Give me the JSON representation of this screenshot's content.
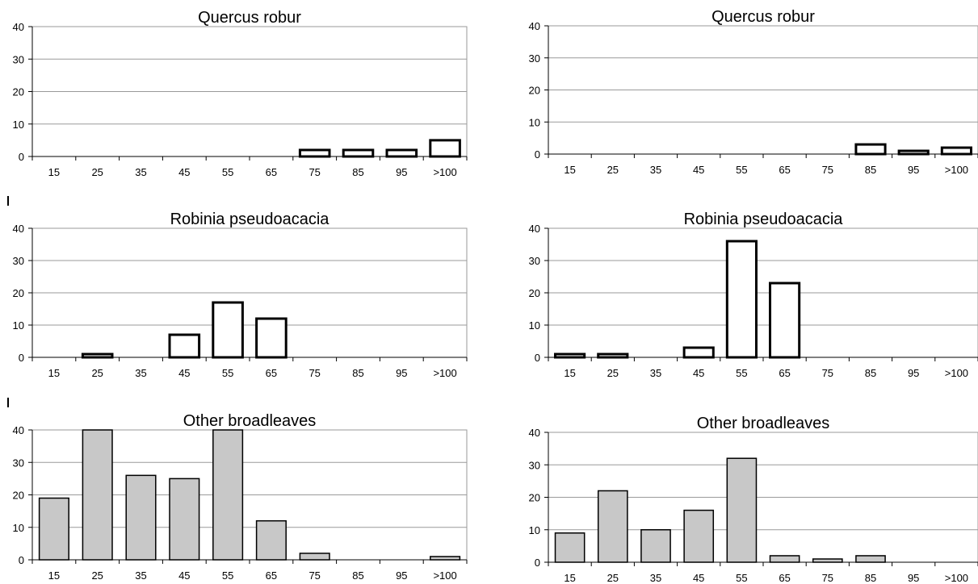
{
  "chart_data": [
    {
      "type": "bar",
      "title": "Quercus robur",
      "categories": [
        "15",
        "25",
        "35",
        "45",
        "55",
        "65",
        "75",
        "85",
        "95",
        ">100"
      ],
      "values": [
        0,
        0,
        0,
        0,
        0,
        0,
        2,
        2,
        2,
        5
      ],
      "ylim": [
        0,
        40
      ],
      "yticks": [
        0,
        10,
        20,
        30,
        40
      ],
      "bar_style": "outlined-thick",
      "bar_fill": "#ffffff",
      "grid": true
    },
    {
      "type": "bar",
      "title": "Quercus robur",
      "categories": [
        "15",
        "25",
        "35",
        "45",
        "55",
        "65",
        "75",
        "85",
        "95",
        ">100"
      ],
      "values": [
        0,
        0,
        0,
        0,
        0,
        0,
        0,
        3,
        1,
        2
      ],
      "ylim": [
        0,
        40
      ],
      "yticks": [
        0,
        10,
        20,
        30,
        40
      ],
      "bar_style": "outlined-thick",
      "bar_fill": "#ffffff",
      "grid": true
    },
    {
      "type": "bar",
      "title": "Robinia pseudoacacia",
      "categories": [
        "15",
        "25",
        "35",
        "45",
        "55",
        "65",
        "75",
        "85",
        "95",
        ">100"
      ],
      "values": [
        0,
        1,
        0,
        7,
        17,
        12,
        0,
        0,
        0,
        0
      ],
      "ylim": [
        0,
        40
      ],
      "yticks": [
        0,
        10,
        20,
        30,
        40
      ],
      "bar_style": "outlined-thick",
      "bar_fill": "#ffffff",
      "grid": true
    },
    {
      "type": "bar",
      "title": "Robinia pseudoacacia",
      "categories": [
        "15",
        "25",
        "35",
        "45",
        "55",
        "65",
        "75",
        "85",
        "95",
        ">100"
      ],
      "values": [
        1,
        1,
        0,
        3,
        36,
        23,
        0,
        0,
        0,
        0
      ],
      "ylim": [
        0,
        40
      ],
      "yticks": [
        0,
        10,
        20,
        30,
        40
      ],
      "bar_style": "outlined-thick",
      "bar_fill": "#ffffff",
      "grid": true
    },
    {
      "type": "bar",
      "title": "Other broadleaves",
      "categories": [
        "15",
        "25",
        "35",
        "45",
        "55",
        "65",
        "75",
        "85",
        "95",
        ">100"
      ],
      "values": [
        19,
        40,
        26,
        25,
        40,
        12,
        2,
        0,
        0,
        1
      ],
      "ylim": [
        0,
        40
      ],
      "yticks": [
        0,
        10,
        20,
        30,
        40
      ],
      "bar_style": "filled",
      "bar_fill": "#c8c8c8",
      "grid": true
    },
    {
      "type": "bar",
      "title": "Other broadleaves",
      "categories": [
        "15",
        "25",
        "35",
        "45",
        "55",
        "65",
        "75",
        "85",
        "95",
        ">100"
      ],
      "values": [
        9,
        22,
        10,
        16,
        32,
        2,
        1,
        2,
        0,
        0
      ],
      "ylim": [
        0,
        40
      ],
      "yticks": [
        0,
        10,
        20,
        30,
        40
      ],
      "bar_style": "filled",
      "bar_fill": "#c8c8c8",
      "grid": true
    }
  ]
}
